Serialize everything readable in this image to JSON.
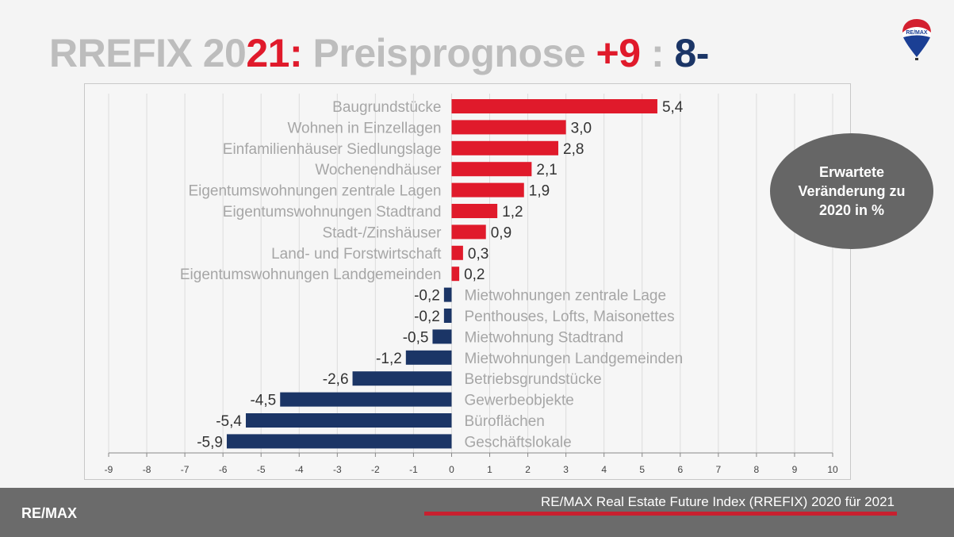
{
  "title": {
    "part1": "RREFIX 20",
    "part2": "21",
    "part3": ":",
    "part4": " Preisprognose ",
    "plus": "+9",
    "sep": " : ",
    "minus": "8-"
  },
  "logo_text": "RE/MAX",
  "annotation": "Erwartete Veränderung zu 2020 in %",
  "footer": {
    "brand": "RE/MAX",
    "source": "RE/MAX Real Estate Future Index (RREFIX) 2020 für 2021"
  },
  "colors": {
    "positive": "#e01a2b",
    "negative": "#1b3566"
  },
  "chart_data": {
    "type": "bar",
    "orientation": "horizontal",
    "categories": [
      "Baugrundstücke",
      "Wohnen in Einzellagen",
      "Einfamilienhäuser Siedlungslage",
      "Wochenendhäuser",
      "Eigentumswohnungen zentrale Lagen",
      "Eigentumswohnungen Stadtrand",
      "Stadt-/Zinshäuser",
      "Land- und Forstwirtschaft",
      "Eigentumswohnungen Landgemeinden",
      "Mietwohnungen zentrale Lage",
      "Penthouses, Lofts, Maisonettes",
      "Mietwohnung Stadtrand",
      "Mietwohnungen Landgemeinden",
      "Betriebsgrundstücke",
      "Gewerbeobjekte",
      "Büroflächen",
      "Geschäftslokale"
    ],
    "values": [
      5.4,
      3.0,
      2.8,
      2.1,
      1.9,
      1.2,
      0.9,
      0.3,
      0.2,
      -0.2,
      -0.2,
      -0.5,
      -1.2,
      -2.6,
      -4.5,
      -5.4,
      -5.9
    ],
    "labels": [
      "5,4",
      "3,0",
      "2,8",
      "2,1",
      "1,9",
      "1,2",
      "0,9",
      "0,3",
      "0,2",
      "-0,2",
      "-0,2",
      "-0,5",
      "-1,2",
      "-2,6",
      "-4,5",
      "-5,4",
      "-5,9"
    ],
    "xlim": [
      -9,
      10
    ],
    "xticks": [
      "-9",
      "-8",
      "-7",
      "-6",
      "-5",
      "-4",
      "-3",
      "-2",
      "-1",
      "0",
      "1",
      "2",
      "3",
      "4",
      "5",
      "6",
      "7",
      "8",
      "9",
      "10"
    ],
    "grid": true
  }
}
